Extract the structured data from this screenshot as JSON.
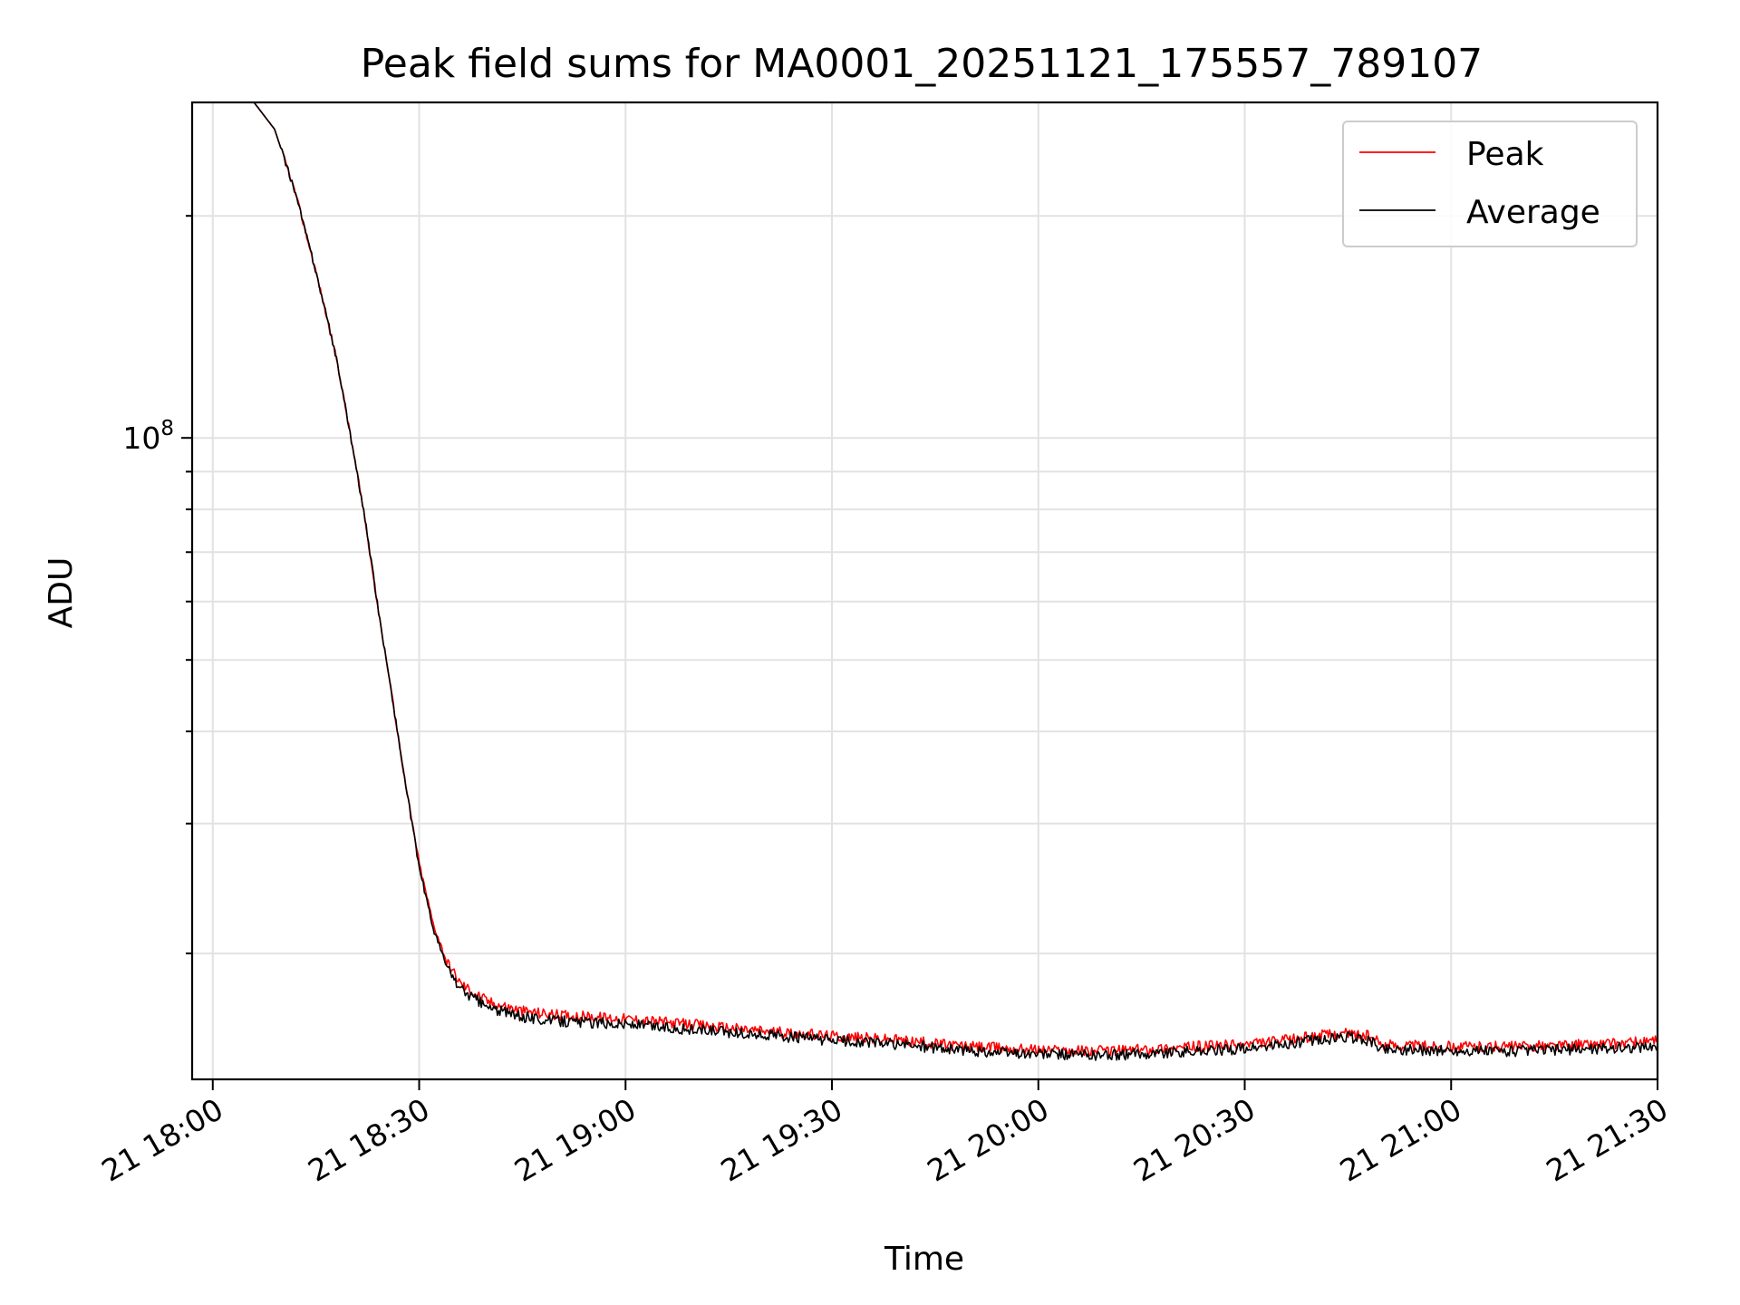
{
  "chart_data": {
    "type": "line",
    "title": "Peak field sums for MA0001_20251121_175557_789107",
    "xlabel": "Time",
    "ylabel": "ADU",
    "y_scale": "log",
    "grid": true,
    "legend_position": "top-right",
    "xlim": [
      "2025-11-21 17:57",
      "2025-11-21 21:30"
    ],
    "ylim": [
      13500000,
      285000000
    ],
    "x_ticks": [
      "21 18:00",
      "21 18:30",
      "21 19:00",
      "21 19:30",
      "21 20:00",
      "21 20:30",
      "21 21:00",
      "21 21:30"
    ],
    "y_ticks": [
      {
        "base": "10",
        "exp": "8"
      }
    ],
    "series": [
      {
        "name": "Peak",
        "color": "#ff0000",
        "x": [
          "17:58",
          "18:06",
          "18:09",
          "18:12",
          "18:15",
          "18:18",
          "18:20",
          "18:22",
          "18:24",
          "18:26",
          "18:28",
          "18:30",
          "18:32",
          "18:34",
          "18:36",
          "18:40",
          "18:45",
          "18:50",
          "19:00",
          "19:10",
          "19:20",
          "19:30",
          "19:40",
          "19:50",
          "20:00",
          "20:10",
          "20:20",
          "20:30",
          "20:35",
          "20:40",
          "20:45",
          "20:48",
          "20:50",
          "21:00",
          "21:10",
          "21:20",
          "21:30"
        ],
        "y": [
          285000000,
          285000000,
          262000000,
          215000000,
          168000000,
          128000000,
          101000000,
          79000000,
          59000000,
          45000000,
          34000000,
          26500000,
          22000000,
          19500000,
          18200000,
          17200000,
          16700000,
          16500000,
          16300000,
          16000000,
          15700000,
          15450000,
          15250000,
          14950000,
          14800000,
          14750000,
          14900000,
          15050000,
          15200000,
          15450000,
          15600000,
          15450000,
          15050000,
          14950000,
          14950000,
          15050000,
          15200000
        ]
      },
      {
        "name": "Average",
        "color": "#000000",
        "x": [
          "17:58",
          "18:06",
          "18:09",
          "18:12",
          "18:15",
          "18:18",
          "18:20",
          "18:22",
          "18:24",
          "18:26",
          "18:28",
          "18:30",
          "18:32",
          "18:34",
          "18:36",
          "18:40",
          "18:45",
          "18:50",
          "19:00",
          "19:10",
          "19:20",
          "19:30",
          "19:40",
          "19:50",
          "20:00",
          "20:10",
          "20:20",
          "20:30",
          "20:35",
          "20:40",
          "20:45",
          "20:48",
          "20:50",
          "21:00",
          "21:10",
          "21:20",
          "21:30"
        ],
        "y": [
          285000000,
          285000000,
          262000000,
          215000000,
          168000000,
          128000000,
          101000000,
          79000000,
          59000000,
          45000000,
          34000000,
          26200000,
          21700000,
          19200000,
          17900000,
          16900000,
          16400000,
          16200000,
          16050000,
          15750000,
          15500000,
          15250000,
          15050000,
          14750000,
          14600000,
          14550000,
          14700000,
          14850000,
          15000000,
          15250000,
          15400000,
          15250000,
          14850000,
          14750000,
          14750000,
          14850000,
          14950000
        ]
      }
    ]
  }
}
